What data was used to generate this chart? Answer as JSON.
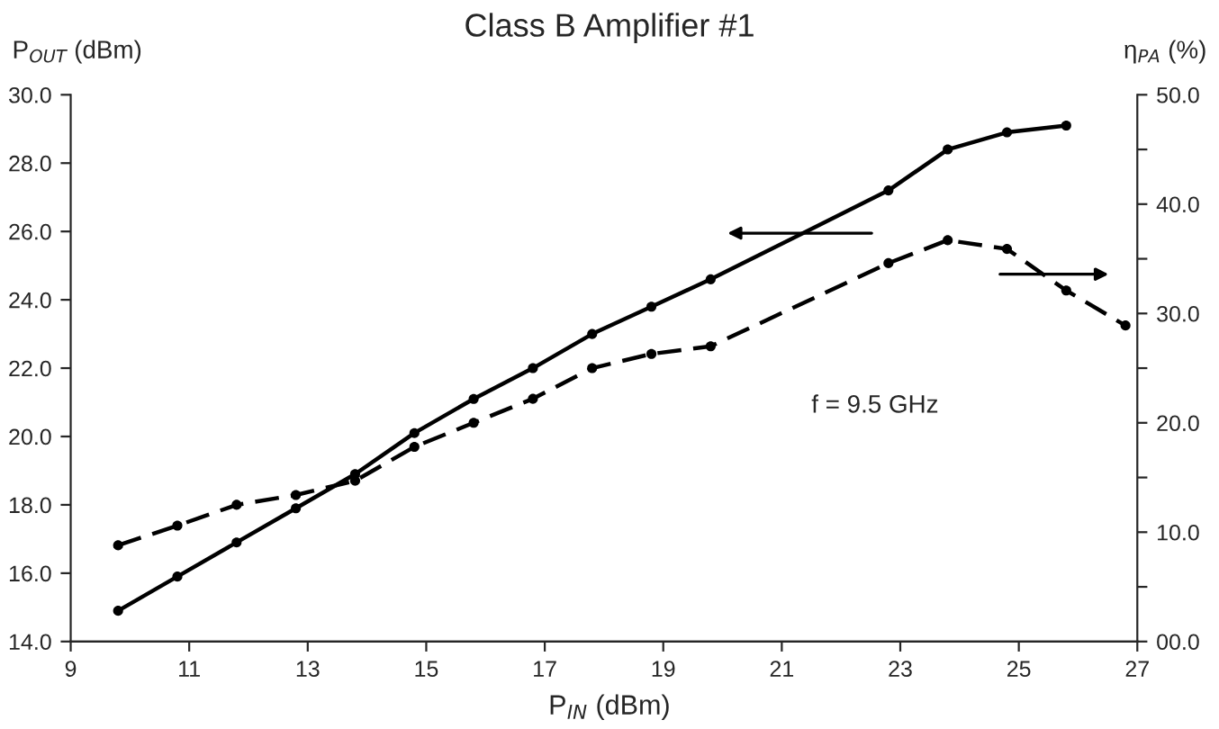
{
  "chart_data": {
    "type": "line",
    "title": "Class B Amplifier #1",
    "xlabel": "P$_{IN}$ (dBm)",
    "ylabel": "P$_{OUT}$ (dBm)",
    "y2label": "η$_{PA}$ (%)",
    "annotations": [
      "f = 9.5 GHz"
    ],
    "marker": "circle",
    "grid": false,
    "legend": false,
    "xlim": [
      9,
      27
    ],
    "xticks": [
      9,
      11,
      13,
      15,
      17,
      19,
      21,
      23,
      25,
      27
    ],
    "ylim": [
      14,
      30
    ],
    "yticks": [
      {
        "value": 14,
        "label": "14.0"
      },
      {
        "value": 16,
        "label": "16.0"
      },
      {
        "value": 18,
        "label": "18.0"
      },
      {
        "value": 20,
        "label": "20.0"
      },
      {
        "value": 22,
        "label": "22.0"
      },
      {
        "value": 24,
        "label": "24.0"
      },
      {
        "value": 26,
        "label": "26.0"
      },
      {
        "value": 28,
        "label": "28.0"
      },
      {
        "value": 30,
        "label": "30.0"
      }
    ],
    "y2lim": [
      0,
      50
    ],
    "y2ticks": [
      {
        "value": 0,
        "label": "00.0"
      },
      {
        "value": 5,
        "label": null
      },
      {
        "value": 10,
        "label": "10.0"
      },
      {
        "value": 15,
        "label": null
      },
      {
        "value": 20,
        "label": "20.0"
      },
      {
        "value": 25,
        "label": null
      },
      {
        "value": 30,
        "label": "30.0"
      },
      {
        "value": 35,
        "label": null
      },
      {
        "value": 40,
        "label": "40.0"
      },
      {
        "value": 45,
        "label": null
      },
      {
        "value": 50,
        "label": "50.0"
      }
    ],
    "series": [
      {
        "color": "#000000",
        "line_style": "solid",
        "x": [
          9.8,
          10.8,
          11.8,
          12.8,
          13.8,
          14.8,
          15.8,
          16.8,
          17.8,
          18.8,
          19.8,
          22.8,
          23.8,
          24.8,
          25.8
        ],
        "values": [
          14.9,
          15.9,
          16.9,
          17.9,
          18.9,
          20.1,
          21.1,
          22.0,
          23.0,
          23.8,
          24.6,
          27.2,
          28.4,
          28.9,
          29.1
        ]
      },
      {
        "color": "#000000",
        "line_style": "dashed",
        "axis": "y2",
        "x": [
          9.8,
          10.8,
          11.8,
          12.8,
          13.8,
          14.8,
          15.8,
          16.8,
          17.8,
          18.8,
          19.8,
          22.8,
          23.8,
          24.8,
          25.8,
          26.8
        ],
        "values": [
          8.8,
          10.6,
          12.5,
          13.4,
          14.7,
          17.8,
          20.0,
          22.2,
          25.0,
          26.3,
          27.0,
          34.6,
          36.7,
          35.9,
          32.1,
          28.9
        ]
      }
    ]
  }
}
